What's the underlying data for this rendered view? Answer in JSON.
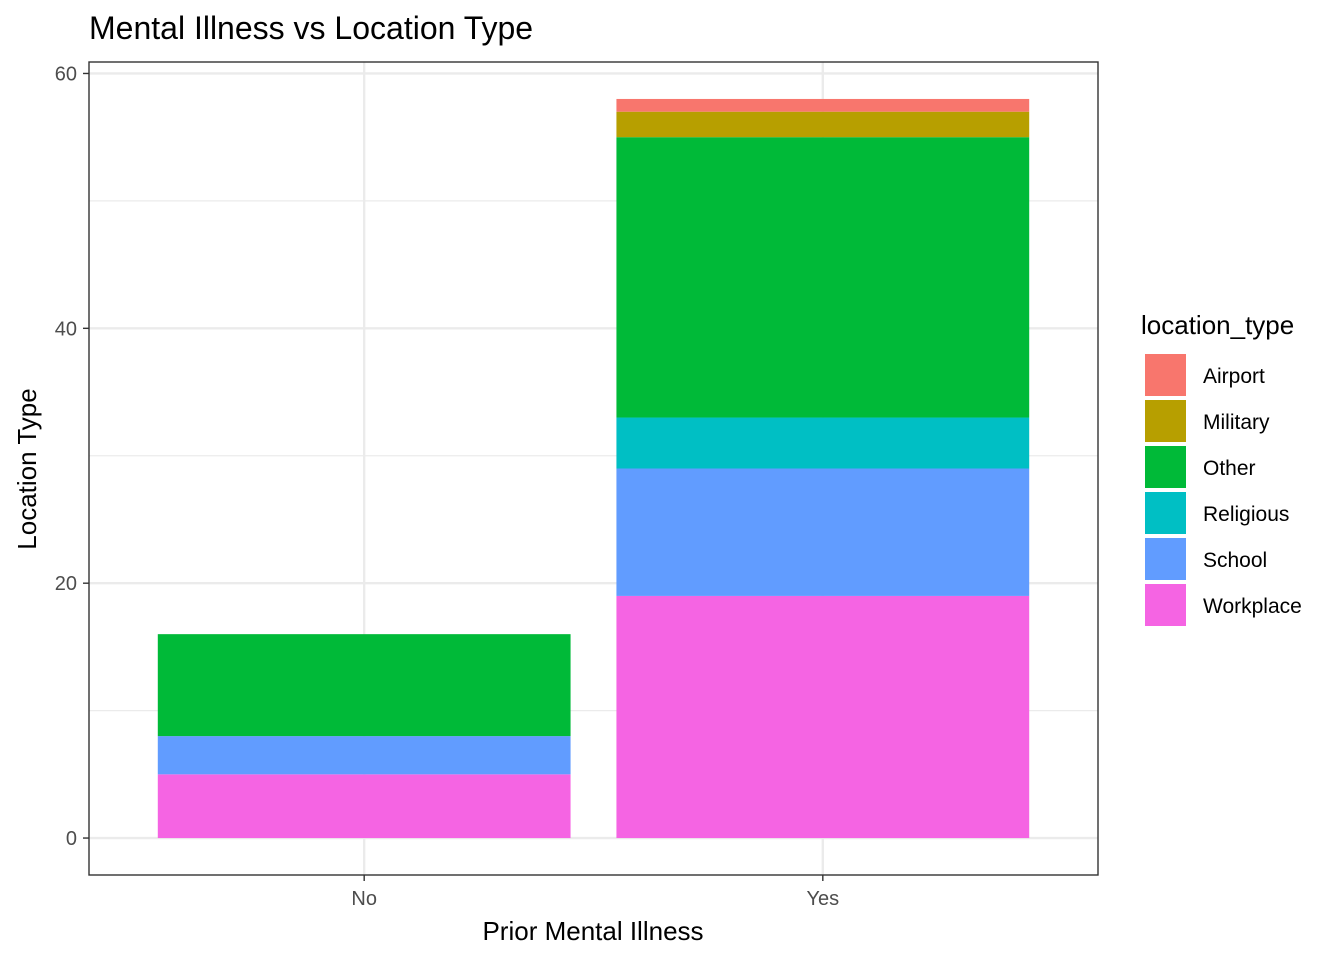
{
  "chart_data": {
    "type": "bar",
    "stacked": true,
    "title": "Mental Illness vs Location Type",
    "xlabel": "Prior Mental Illness",
    "ylabel": "Location Type",
    "categories": [
      "No",
      "Yes"
    ],
    "ylim": [
      -2.9,
      60.9
    ],
    "yticks": [
      0,
      20,
      40,
      60
    ],
    "grid": true,
    "legend": {
      "title": "location_type",
      "placement": "right"
    },
    "series": [
      {
        "name": "Airport",
        "color": "#F8766D",
        "values": [
          0,
          1
        ]
      },
      {
        "name": "Military",
        "color": "#B79F00",
        "values": [
          0,
          2
        ]
      },
      {
        "name": "Other",
        "color": "#00BA38",
        "values": [
          8,
          22
        ]
      },
      {
        "name": "Religious",
        "color": "#00BFC4",
        "values": [
          0,
          4
        ]
      },
      {
        "name": "School",
        "color": "#619CFF",
        "values": [
          3,
          10
        ]
      },
      {
        "name": "Workplace",
        "color": "#F564E3",
        "values": [
          5,
          19
        ]
      }
    ]
  }
}
